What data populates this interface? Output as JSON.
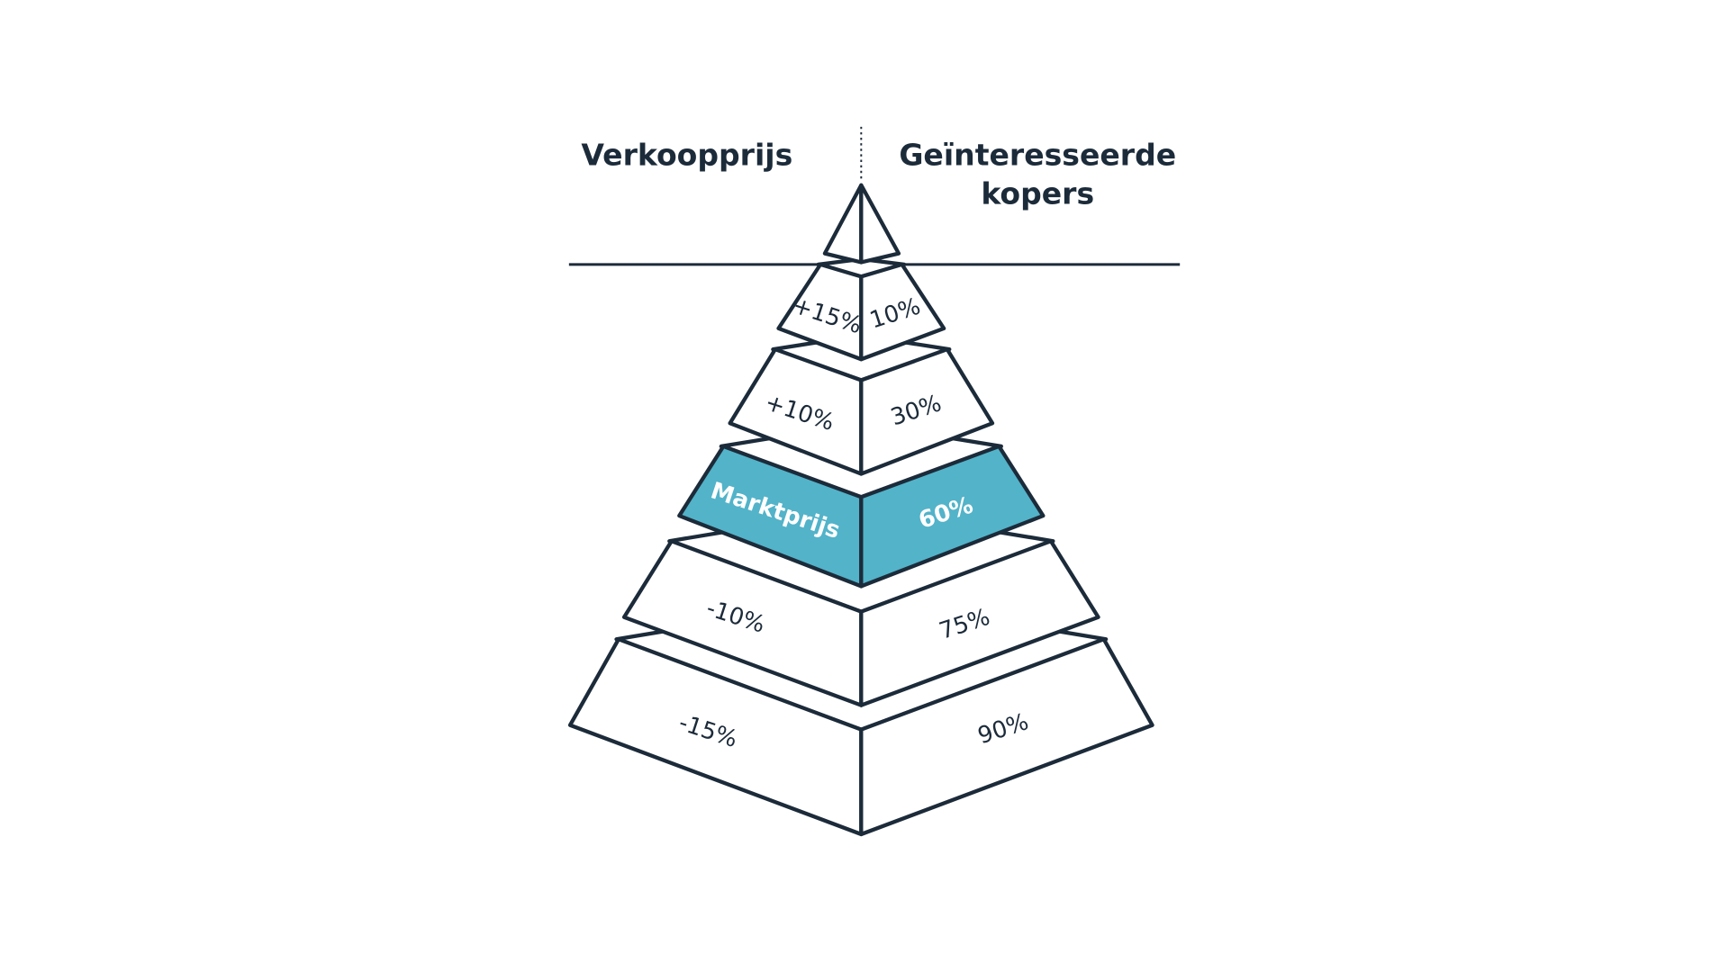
{
  "headers": {
    "left": "Verkoopprijs",
    "right_line1": "Geïnteresseerde",
    "right_line2": "kopers"
  },
  "colors": {
    "outline": "#1c2b3a",
    "highlight": "#52b3c9",
    "face": "#ffffff"
  },
  "tiers": [
    {
      "left": "+15%",
      "right": "10%",
      "highlighted": false
    },
    {
      "left": "+10%",
      "right": "30%",
      "highlighted": false
    },
    {
      "left": "Marktprijs",
      "right": "60%",
      "highlighted": true
    },
    {
      "left": "-10%",
      "right": "75%",
      "highlighted": false
    },
    {
      "left": "-15%",
      "right": "90%",
      "highlighted": false
    }
  ]
}
